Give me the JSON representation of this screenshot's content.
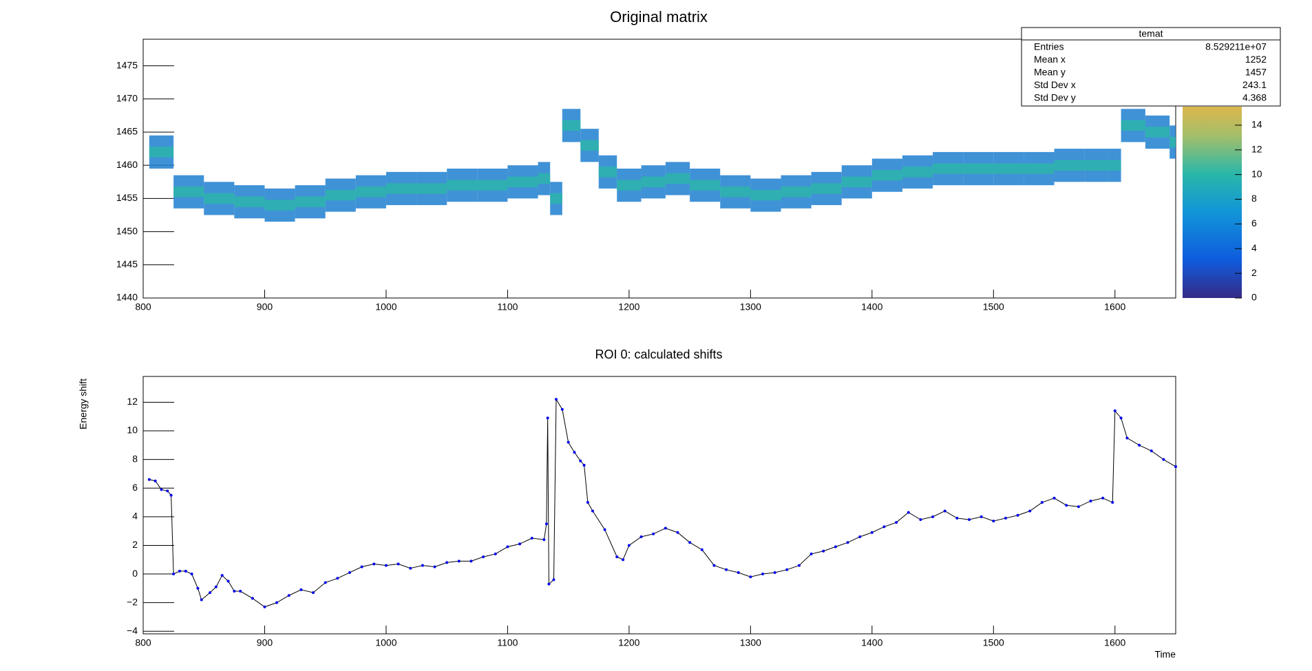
{
  "chart_data": [
    {
      "type": "heatmap",
      "title": "Original matrix",
      "xlim": [
        800,
        1650
      ],
      "xticks": [
        800,
        900,
        1000,
        1100,
        1200,
        1300,
        1400,
        1500,
        1600
      ],
      "ylim": [
        1440,
        1479
      ],
      "yticks": [
        1440,
        1445,
        1450,
        1455,
        1460,
        1465,
        1470,
        1475
      ],
      "zlim": [
        0,
        15.5
      ],
      "zticks": [
        0,
        2,
        4,
        6,
        8,
        10,
        12,
        14
      ],
      "x": [
        805,
        815,
        825,
        850,
        875,
        900,
        925,
        950,
        975,
        1000,
        1025,
        1050,
        1075,
        1100,
        1125,
        1135,
        1145,
        1160,
        1175,
        1190,
        1210,
        1230,
        1250,
        1275,
        1300,
        1325,
        1350,
        1375,
        1400,
        1425,
        1450,
        1475,
        1500,
        1525,
        1550,
        1575,
        1595,
        1605,
        1625,
        1645
      ],
      "values": [
        1462,
        1462,
        1456,
        1455,
        1454.5,
        1454,
        1454.5,
        1455.5,
        1456,
        1456.5,
        1456.5,
        1457,
        1457,
        1457.5,
        1458,
        1455,
        1466,
        1463,
        1459,
        1457,
        1457.5,
        1458,
        1457,
        1456,
        1455.5,
        1456,
        1456.5,
        1457.5,
        1458.5,
        1459,
        1459.5,
        1459.5,
        1459.5,
        1459.5,
        1460,
        1460,
        1460,
        1466,
        1465,
        1463.5
      ],
      "color": "#1f7fd0",
      "stats": {
        "title": "temat",
        "rows": [
          [
            "Entries",
            {
              "value": 85292110,
              "label": "8.529211e+07"
            }
          ],
          [
            "Mean x",
            1252
          ],
          [
            "Mean y",
            1457
          ],
          [
            "Std Dev x",
            243.1
          ],
          [
            "Std Dev y",
            4.368
          ]
        ]
      }
    },
    {
      "type": "line",
      "title": "ROI 0: calculated shifts",
      "xlabel": "Time",
      "ylabel": "Energy shift",
      "xlim": [
        800,
        1650
      ],
      "xticks": [
        800,
        900,
        1000,
        1100,
        1200,
        1300,
        1400,
        1500,
        1600
      ],
      "ylim": [
        -4.18,
        13.8
      ],
      "yticks": [
        {
          "value": -4,
          "label": "−4"
        },
        {
          "value": -2,
          "label": "−2"
        },
        0,
        2,
        4,
        6,
        8,
        10,
        12
      ],
      "x": [
        805,
        810,
        815,
        820,
        823,
        825,
        830,
        835,
        840,
        845,
        848,
        855,
        860,
        865,
        870,
        875,
        880,
        890,
        900,
        910,
        920,
        930,
        940,
        950,
        960,
        970,
        980,
        990,
        1000,
        1010,
        1020,
        1030,
        1040,
        1050,
        1060,
        1070,
        1080,
        1090,
        1100,
        1110,
        1120,
        1130,
        1132,
        1133,
        1134,
        1138,
        1140,
        1145,
        1150,
        1155,
        1160,
        1163,
        1166,
        1170,
        1180,
        1190,
        1195,
        1200,
        1210,
        1220,
        1230,
        1240,
        1250,
        1260,
        1270,
        1280,
        1290,
        1300,
        1310,
        1320,
        1330,
        1340,
        1350,
        1360,
        1370,
        1380,
        1390,
        1400,
        1410,
        1420,
        1430,
        1440,
        1450,
        1460,
        1470,
        1480,
        1490,
        1500,
        1510,
        1520,
        1530,
        1540,
        1550,
        1560,
        1570,
        1580,
        1590,
        1598,
        1600,
        1605,
        1610,
        1620,
        1630,
        1640,
        1650
      ],
      "series": [
        {
          "color": "#0000ee",
          "values": [
            6.6,
            6.5,
            5.9,
            5.8,
            5.5,
            0,
            0.2,
            0.2,
            0,
            -1,
            -1.8,
            -1.3,
            -0.9,
            -0.1,
            -0.5,
            -1.2,
            -1.2,
            -1.7,
            -2.3,
            -2,
            -1.5,
            -1.1,
            -1.3,
            -0.6,
            -0.3,
            0.1,
            0.5,
            0.7,
            0.6,
            0.7,
            0.4,
            0.6,
            0.5,
            0.8,
            0.9,
            0.9,
            1.2,
            1.4,
            1.9,
            2.1,
            2.5,
            2.4,
            3.5,
            10.9,
            -0.7,
            -0.4,
            12.2,
            11.5,
            9.2,
            8.5,
            7.9,
            7.6,
            5,
            4.4,
            3.1,
            1.2,
            1,
            2,
            2.6,
            2.8,
            3.2,
            2.9,
            2.2,
            1.7,
            0.6,
            0.3,
            0.1,
            -0.2,
            0,
            0.1,
            0.3,
            0.6,
            1.4,
            1.6,
            1.9,
            2.2,
            2.6,
            2.9,
            3.3,
            3.6,
            4.3,
            3.8,
            4,
            4.4,
            3.9,
            3.8,
            4,
            3.7,
            3.9,
            4.1,
            4.4,
            5,
            5.3,
            4.8,
            4.7,
            5.1,
            5.3,
            5,
            11.4,
            10.9,
            9.5,
            9,
            8.6,
            8,
            7.5
          ]
        }
      ]
    }
  ]
}
